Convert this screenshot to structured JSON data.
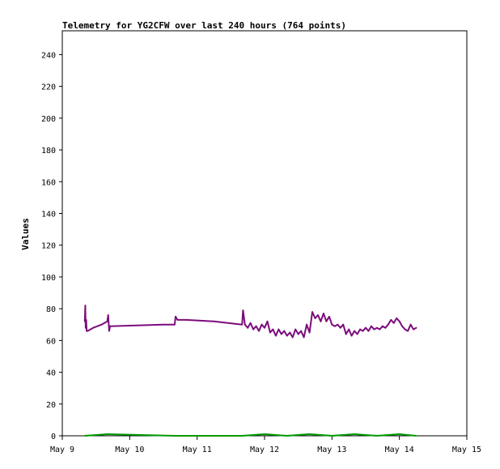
{
  "chart_data": {
    "type": "line",
    "title": "Telemetry for YG2CFW over last 240 hours (764 points)",
    "ylabel": "Values",
    "xlabel": "",
    "x_ticks": [
      "May 9",
      "May 10",
      "May 11",
      "May 12",
      "May 13",
      "May 14",
      "May 15"
    ],
    "y_ticks": [
      0,
      20,
      40,
      60,
      80,
      100,
      120,
      140,
      160,
      180,
      200,
      220,
      240
    ],
    "xlim": [
      "2024-05-09T00:00",
      "2024-05-15T00:00"
    ],
    "ylim": [
      0,
      255
    ],
    "grid": false,
    "series": [
      {
        "color": "#7b0c7b",
        "x": [
          "2024-05-09T08:00",
          "2024-05-09T08:10",
          "2024-05-09T08:20",
          "2024-05-09T08:30",
          "2024-05-09T08:40",
          "2024-05-09T09:00",
          "2024-05-09T11:00",
          "2024-05-09T14:00",
          "2024-05-09T16:00",
          "2024-05-09T16:20",
          "2024-05-09T16:40",
          "2024-05-09T17:00",
          "2024-05-10T12:00",
          "2024-05-10T15:00",
          "2024-05-10T16:00",
          "2024-05-10T16:20",
          "2024-05-10T17:00",
          "2024-05-10T20:00",
          "2024-05-11T06:00",
          "2024-05-11T16:00",
          "2024-05-11T16:20",
          "2024-05-11T17:00",
          "2024-05-11T18:00",
          "2024-05-11T19:00",
          "2024-05-11T20:00",
          "2024-05-11T21:00",
          "2024-05-11T22:00",
          "2024-05-11T23:00",
          "2024-05-12T00:00",
          "2024-05-12T01:00",
          "2024-05-12T02:00",
          "2024-05-12T03:00",
          "2024-05-12T04:00",
          "2024-05-12T05:00",
          "2024-05-12T06:00",
          "2024-05-12T07:00",
          "2024-05-12T08:00",
          "2024-05-12T09:00",
          "2024-05-12T10:00",
          "2024-05-12T11:00",
          "2024-05-12T12:00",
          "2024-05-12T13:00",
          "2024-05-12T14:00",
          "2024-05-12T15:00",
          "2024-05-12T16:00",
          "2024-05-12T17:00",
          "2024-05-12T18:00",
          "2024-05-12T19:00",
          "2024-05-12T20:00",
          "2024-05-12T21:00",
          "2024-05-12T22:00",
          "2024-05-12T23:00",
          "2024-05-13T00:00",
          "2024-05-13T01:00",
          "2024-05-13T02:00",
          "2024-05-13T03:00",
          "2024-05-13T04:00",
          "2024-05-13T05:00",
          "2024-05-13T06:00",
          "2024-05-13T07:00",
          "2024-05-13T08:00",
          "2024-05-13T09:00",
          "2024-05-13T10:00",
          "2024-05-13T11:00",
          "2024-05-13T12:00",
          "2024-05-13T13:00",
          "2024-05-13T14:00",
          "2024-05-13T15:00",
          "2024-05-13T16:00",
          "2024-05-13T17:00",
          "2024-05-13T18:00",
          "2024-05-13T19:00",
          "2024-05-13T20:00",
          "2024-05-13T21:00",
          "2024-05-13T22:00",
          "2024-05-13T23:00",
          "2024-05-14T00:00",
          "2024-05-14T01:00",
          "2024-05-14T02:00",
          "2024-05-14T03:00",
          "2024-05-14T04:00",
          "2024-05-14T05:00",
          "2024-05-14T06:00"
        ],
        "values": [
          72,
          82,
          68,
          73,
          66,
          66,
          68,
          70,
          72,
          76,
          66,
          69,
          70,
          70,
          70,
          75,
          73,
          73,
          72,
          70,
          79,
          70,
          68,
          71,
          67,
          69,
          66,
          70,
          68,
          72,
          65,
          67,
          63,
          67,
          64,
          66,
          63,
          65,
          62,
          67,
          64,
          66,
          62,
          70,
          65,
          78,
          74,
          76,
          72,
          77,
          72,
          75,
          70,
          69,
          70,
          68,
          70,
          64,
          67,
          63,
          66,
          64,
          67,
          66,
          68,
          66,
          69,
          67,
          68,
          67,
          69,
          68,
          70,
          73,
          71,
          74,
          72,
          69,
          67,
          66,
          70,
          67,
          68
        ]
      },
      {
        "color": "#009900",
        "x": [
          "2024-05-09T08:00",
          "2024-05-09T16:00",
          "2024-05-10T16:00",
          "2024-05-11T16:00",
          "2024-05-12T00:00",
          "2024-05-12T08:00",
          "2024-05-12T16:00",
          "2024-05-13T00:00",
          "2024-05-13T08:00",
          "2024-05-13T16:00",
          "2024-05-14T00:00",
          "2024-05-14T06:00"
        ],
        "values": [
          0,
          1,
          0,
          0,
          1,
          0,
          1,
          0,
          1,
          0,
          1,
          0
        ]
      }
    ]
  }
}
